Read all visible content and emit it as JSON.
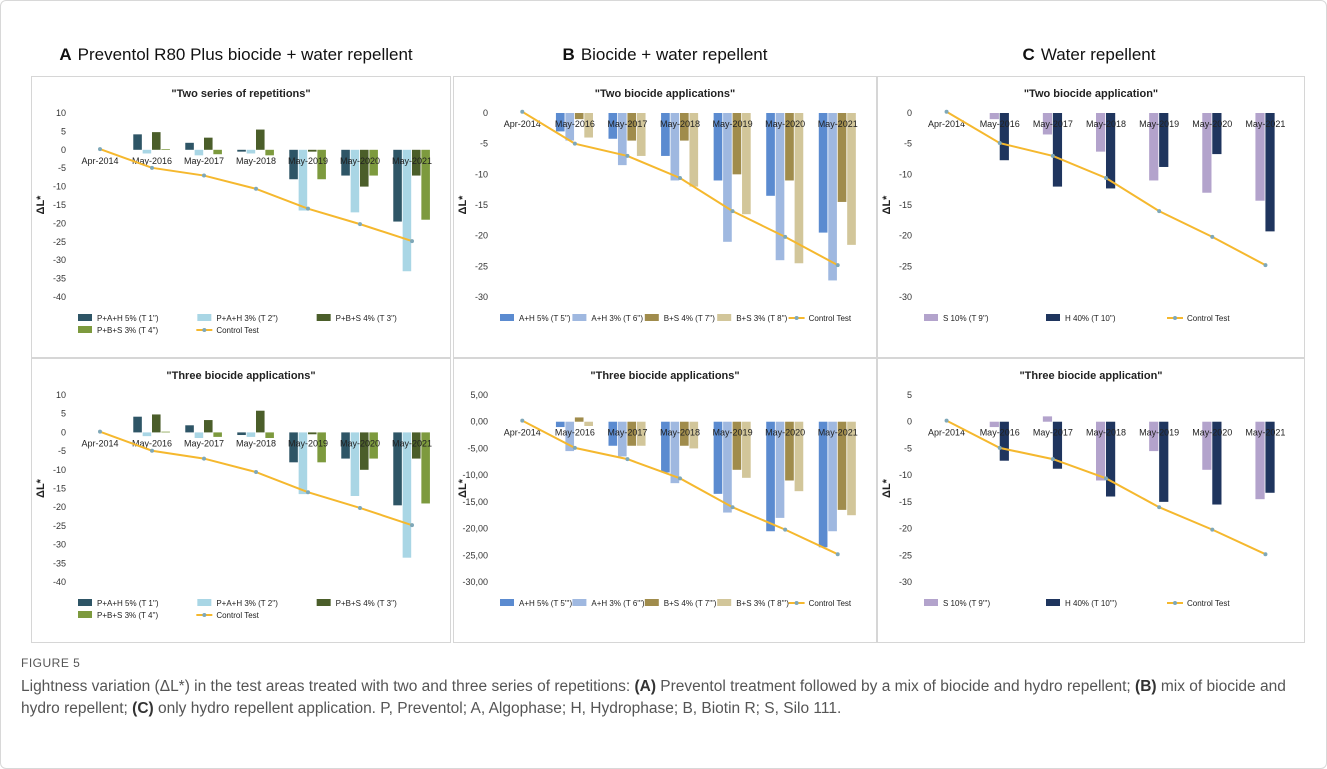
{
  "panels": [
    {
      "letter": "A",
      "title": "Preventol R80 Plus biocide + water repellent"
    },
    {
      "letter": "B",
      "title": "Biocide + water repellent"
    },
    {
      "letter": "C",
      "title": "Water repellent"
    }
  ],
  "caption": {
    "figure_label": "FIGURE 5",
    "intro": "Lightness variation (ΔL*) in the test areas treated with two and three series of repetitions: ",
    "a_label": "(A)",
    "a_text": " Preventol treatment followed by a mix of biocide and hydro repellent; ",
    "b_label": "(B)",
    "b_text": " mix of biocide and hydro repellent; ",
    "c_label": "(C)",
    "c_text": " only hydro repellent application. P, Preventol; A, Algophase; H, Hydrophase; B, Biotin R; S, Silo 111."
  },
  "chart_data": [
    {
      "id": "A-top",
      "type": "bar",
      "title": "\"Two series of repetitions\"",
      "ylabel": "ΔL*",
      "ylim": [
        -40,
        10
      ],
      "yticks": [
        10,
        5,
        0,
        -5,
        -10,
        -15,
        -20,
        -25,
        -30,
        -35,
        -40
      ],
      "tick_format": "int",
      "categories": [
        "Apr-2014",
        "May-2016",
        "May-2017",
        "May-2018",
        "May-2019",
        "May-2020",
        "May-2021"
      ],
      "series": [
        {
          "name": "P+A+H 5% (T 1'')",
          "color": "#2e5566",
          "values": [
            null,
            4.2,
            1.9,
            -0.5,
            -8,
            -7,
            -19.5
          ]
        },
        {
          "name": "P+A+H 3% (T 2'')",
          "color": "#a9d6e5",
          "values": [
            null,
            -1,
            -1.5,
            -1,
            -16.5,
            -17,
            -33
          ]
        },
        {
          "name": "P+B+S 4% (T 3'')",
          "color": "#4b5e2a",
          "values": [
            null,
            4.8,
            3.3,
            5.5,
            -0.5,
            -10,
            -7
          ]
        },
        {
          "name": "P+B+S 3% (T 4'')",
          "color": "#7d9a3e",
          "values": [
            null,
            0.2,
            -1.2,
            -1.5,
            -8,
            -7,
            -19
          ]
        }
      ],
      "control": {
        "name": "Control Test",
        "color": "#f5b82e",
        "values": [
          0.2,
          -4.9,
          -7,
          -10.6,
          -16,
          -20.2,
          -24.8
        ]
      },
      "legend_rows": [
        [
          0,
          1,
          2
        ],
        [
          3,
          "control"
        ]
      ]
    },
    {
      "id": "A-bottom",
      "type": "bar",
      "title": "\"Three biocide  applications\"",
      "ylabel": "ΔL*",
      "ylim": [
        -40,
        10
      ],
      "yticks": [
        10,
        5,
        0,
        -5,
        -10,
        -15,
        -20,
        -25,
        -30,
        -35,
        -40
      ],
      "tick_format": "int",
      "categories": [
        "Apr-2014",
        "May-2016",
        "May-2017",
        "May-2018",
        "May-2019",
        "May-2020",
        "May-2021"
      ],
      "series": [
        {
          "name": "P+A+H 5% (T 1'')",
          "color": "#2e5566",
          "values": [
            null,
            4.2,
            1.9,
            -0.7,
            -8,
            -7,
            -19.5
          ]
        },
        {
          "name": "P+A+H 3% (T 2'')",
          "color": "#a9d6e5",
          "values": [
            null,
            -1,
            -1.5,
            -1.2,
            -16.5,
            -17,
            -33.5
          ]
        },
        {
          "name": "P+B+S 4% (T 3'')",
          "color": "#4b5e2a",
          "values": [
            null,
            4.8,
            3.3,
            5.8,
            -0.5,
            -10,
            -7
          ]
        },
        {
          "name": "P+B+S 3% (T 4'')",
          "color": "#7d9a3e",
          "values": [
            null,
            0.2,
            -1.2,
            -1.5,
            -8,
            -7,
            -19
          ]
        }
      ],
      "control": {
        "name": "Control Test",
        "color": "#f5b82e",
        "values": [
          0.2,
          -4.9,
          -7,
          -10.6,
          -16,
          -20.2,
          -24.8
        ]
      },
      "legend_rows": [
        [
          0,
          1,
          2
        ],
        [
          3,
          "control"
        ]
      ]
    },
    {
      "id": "B-top",
      "type": "bar",
      "title": "\"Two biocide applications\"",
      "ylabel": "ΔL*",
      "ylim": [
        -30,
        0
      ],
      "yticks": [
        0,
        -5,
        -10,
        -15,
        -20,
        -25,
        -30
      ],
      "tick_format": "int",
      "categories": [
        "Apr-2014",
        "May-2016",
        "May-2017",
        "May-2018",
        "May-2019",
        "May-2020",
        "May-2021"
      ],
      "series": [
        {
          "name": "A+H 5% (T 5'')",
          "color": "#5b8bd0",
          "values": [
            null,
            -3,
            -4.2,
            -7,
            -11,
            -13.5,
            -19.5
          ]
        },
        {
          "name": "A+H 3% (T 6'')",
          "color": "#9fb8e0",
          "values": [
            null,
            -4.5,
            -8.5,
            -11,
            -21,
            -24,
            -27.3
          ]
        },
        {
          "name": "B+S 4% (T 7'')",
          "color": "#a08c4c",
          "values": [
            null,
            -1,
            -4.5,
            -4.5,
            -10,
            -11,
            -14.5
          ]
        },
        {
          "name": "B+S 3% (T 8'')",
          "color": "#d2c69a",
          "values": [
            null,
            -4,
            -7,
            -12,
            -16.5,
            -24.5,
            -21.5
          ]
        }
      ],
      "control": {
        "name": "Control Test",
        "color": "#f5b82e",
        "values": [
          0.2,
          -5,
          -7,
          -10.6,
          -16,
          -20.2,
          -24.8
        ]
      },
      "legend_rows": [
        [
          0,
          1,
          2,
          3,
          "control"
        ]
      ]
    },
    {
      "id": "B-bottom",
      "type": "bar",
      "title": "\"Three biocide applications\"",
      "ylabel": "ΔL*",
      "ylim": [
        -30,
        5
      ],
      "yticks": [
        5,
        0,
        -5,
        -10,
        -15,
        -20,
        -25,
        -30
      ],
      "tick_format": "comma2",
      "categories": [
        "Apr-2014",
        "May-2016",
        "May-2017",
        "May-2018",
        "May-2019",
        "May-2020",
        "May-2021"
      ],
      "series": [
        {
          "name": "A+H 5% (T 5''')",
          "color": "#5b8bd0",
          "values": [
            null,
            -1,
            -4.5,
            -9.5,
            -13.5,
            -20.5,
            -23.5
          ]
        },
        {
          "name": "A+H 3% (T 6''')",
          "color": "#9fb8e0",
          "values": [
            null,
            -5.5,
            -6.5,
            -11.5,
            -17,
            -18,
            -20.5
          ]
        },
        {
          "name": "B+S 4% (T 7''')",
          "color": "#a08c4c",
          "values": [
            null,
            0.8,
            -4.5,
            -4.5,
            -9,
            -11,
            -16.5
          ]
        },
        {
          "name": "B+S 3% (T 8''')",
          "color": "#d2c69a",
          "values": [
            null,
            -0.8,
            -4.5,
            -5,
            -10.5,
            -13,
            -17.5
          ]
        }
      ],
      "control": {
        "name": "Control Test",
        "color": "#f5b82e",
        "values": [
          0.2,
          -4.9,
          -7,
          -10.6,
          -16,
          -20.2,
          -24.8
        ]
      },
      "legend_rows": [
        [
          0,
          1,
          2,
          3,
          "control"
        ]
      ]
    },
    {
      "id": "C-top",
      "type": "bar",
      "title": "\"Two biocide application\"",
      "ylabel": "ΔL*",
      "ylim": [
        -30,
        0
      ],
      "yticks": [
        0,
        -5,
        -10,
        -15,
        -20,
        -25,
        -30
      ],
      "tick_format": "int",
      "categories": [
        "Apr-2014",
        "May-2016",
        "May-2017",
        "May-2018",
        "May-2019",
        "May-2020",
        "May-2021"
      ],
      "series": [
        {
          "name": "S 10% (T 9'')",
          "color": "#b3a3cc",
          "values": [
            null,
            -1,
            -3.5,
            -6.3,
            -11,
            -13,
            -14.3
          ]
        },
        {
          "name": "H 40% (T 10'')",
          "color": "#1f355e",
          "values": [
            null,
            -7.7,
            -12,
            -12.3,
            -8.8,
            -6.7,
            -19.3
          ]
        }
      ],
      "control": {
        "name": "Control Test",
        "color": "#f5b82e",
        "values": [
          0.2,
          -4.9,
          -7,
          -10.6,
          -16,
          -20.2,
          -24.8
        ]
      },
      "legend_rows": [
        [
          0,
          1,
          "control"
        ]
      ]
    },
    {
      "id": "C-bottom",
      "type": "bar",
      "title": "\"Three biocide application\"",
      "ylabel": "ΔL*",
      "ylim": [
        -30,
        5
      ],
      "yticks": [
        5,
        0,
        -5,
        -10,
        -15,
        -20,
        -25,
        -30
      ],
      "tick_format": "int",
      "categories": [
        "Apr-2014",
        "May-2016",
        "May-2017",
        "May-2018",
        "May-2019",
        "May-2020",
        "May-2021"
      ],
      "series": [
        {
          "name": "S 10% (T 9''')",
          "color": "#b3a3cc",
          "values": [
            null,
            -1,
            1,
            -11,
            -5.5,
            -9,
            -14.5
          ]
        },
        {
          "name": "H 40% (T 10''')",
          "color": "#1f355e",
          "values": [
            null,
            -7.3,
            -8.8,
            -14,
            -15,
            -15.5,
            -13.3
          ]
        }
      ],
      "control": {
        "name": "Control Test",
        "color": "#f5b82e",
        "values": [
          0.2,
          -4.9,
          -7,
          -10.6,
          -16,
          -20.2,
          -24.8
        ]
      },
      "legend_rows": [
        [
          0,
          1,
          "control"
        ]
      ]
    }
  ]
}
